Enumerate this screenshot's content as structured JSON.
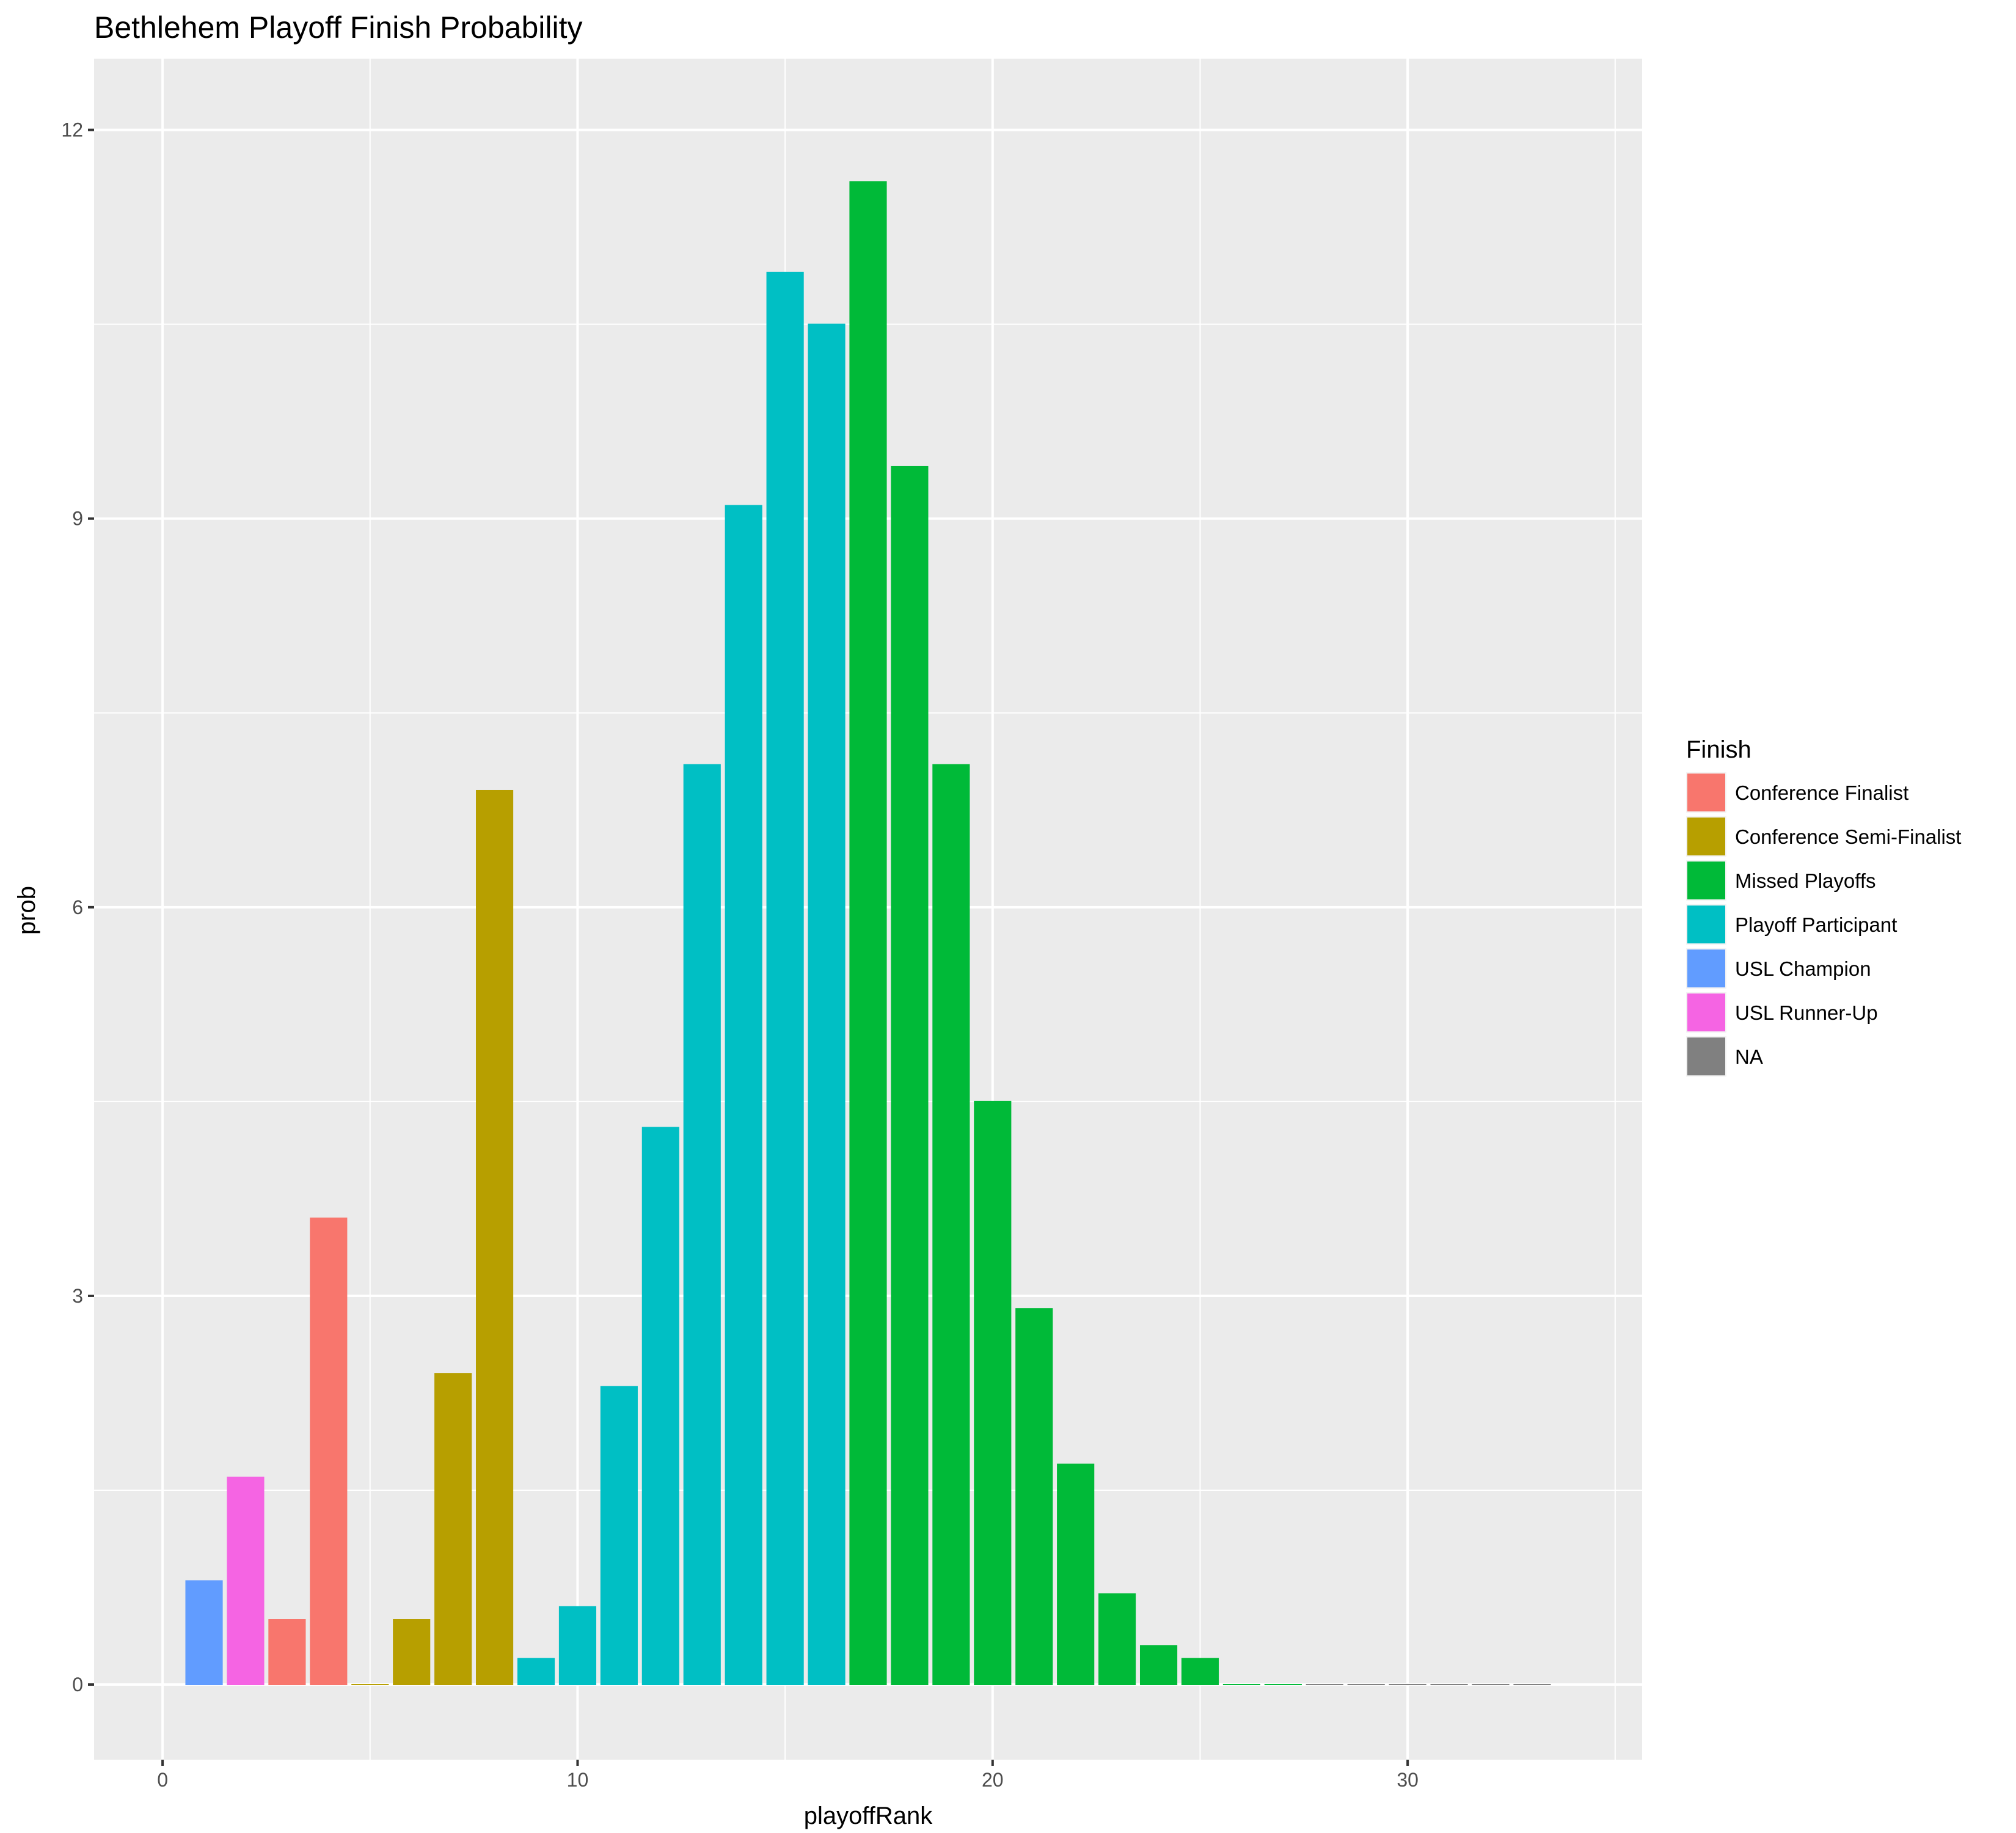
{
  "chart_data": {
    "type": "bar",
    "title": "Bethlehem Playoff Finish Probability",
    "xlabel": "playoffRank",
    "ylabel": "prob",
    "xlim": [
      -1.65,
      35.65
    ],
    "ylim": [
      -0.58,
      12.55
    ],
    "xticks": [
      0,
      10,
      20,
      30
    ],
    "yticks": [
      0,
      3,
      6,
      9,
      12
    ],
    "grid": true,
    "legend": {
      "title": "Finish",
      "position": "right",
      "entries": [
        {
          "name": "Conference Finalist",
          "color": "#F8766D"
        },
        {
          "name": "Conference Semi-Finalist",
          "color": "#B79F00"
        },
        {
          "name": "Missed Playoffs",
          "color": "#00BA38"
        },
        {
          "name": "Playoff Participant",
          "color": "#00BFC4"
        },
        {
          "name": "USL Champion",
          "color": "#619CFF"
        },
        {
          "name": "USL Runner-Up",
          "color": "#F564E3"
        },
        {
          "name": "NA",
          "color": "#808080"
        }
      ]
    },
    "bars": [
      {
        "x": 1,
        "y": 0.8,
        "finish": "USL Champion"
      },
      {
        "x": 2,
        "y": 1.6,
        "finish": "USL Runner-Up"
      },
      {
        "x": 3,
        "y": 0.5,
        "finish": "Conference Finalist"
      },
      {
        "x": 4,
        "y": 3.6,
        "finish": "Conference Finalist"
      },
      {
        "x": 5,
        "y": 0.0,
        "finish": "Conference Semi-Finalist"
      },
      {
        "x": 6,
        "y": 0.5,
        "finish": "Conference Semi-Finalist"
      },
      {
        "x": 7,
        "y": 2.4,
        "finish": "Conference Semi-Finalist"
      },
      {
        "x": 8,
        "y": 6.9,
        "finish": "Conference Semi-Finalist"
      },
      {
        "x": 9,
        "y": 0.2,
        "finish": "Playoff Participant"
      },
      {
        "x": 10,
        "y": 0.6,
        "finish": "Playoff Participant"
      },
      {
        "x": 11,
        "y": 2.3,
        "finish": "Playoff Participant"
      },
      {
        "x": 12,
        "y": 4.3,
        "finish": "Playoff Participant"
      },
      {
        "x": 13,
        "y": 7.1,
        "finish": "Playoff Participant"
      },
      {
        "x": 14,
        "y": 9.1,
        "finish": "Playoff Participant"
      },
      {
        "x": 15,
        "y": 10.9,
        "finish": "Playoff Participant"
      },
      {
        "x": 16,
        "y": 10.5,
        "finish": "Playoff Participant"
      },
      {
        "x": 17,
        "y": 11.6,
        "finish": "Missed Playoffs"
      },
      {
        "x": 18,
        "y": 9.4,
        "finish": "Missed Playoffs"
      },
      {
        "x": 19,
        "y": 7.1,
        "finish": "Missed Playoffs"
      },
      {
        "x": 20,
        "y": 4.5,
        "finish": "Missed Playoffs"
      },
      {
        "x": 21,
        "y": 2.9,
        "finish": "Missed Playoffs"
      },
      {
        "x": 22,
        "y": 1.7,
        "finish": "Missed Playoffs"
      },
      {
        "x": 23,
        "y": 0.7,
        "finish": "Missed Playoffs"
      },
      {
        "x": 24,
        "y": 0.3,
        "finish": "Missed Playoffs"
      },
      {
        "x": 25,
        "y": 0.2,
        "finish": "Missed Playoffs"
      },
      {
        "x": 26,
        "y": 0.0,
        "finish": "Missed Playoffs"
      },
      {
        "x": 27,
        "y": 0.0,
        "finish": "Missed Playoffs"
      },
      {
        "x": 28,
        "y": 0.0,
        "finish": "NA"
      },
      {
        "x": 29,
        "y": 0.0,
        "finish": "NA"
      },
      {
        "x": 30,
        "y": 0.0,
        "finish": "NA"
      },
      {
        "x": 31,
        "y": 0.0,
        "finish": "NA"
      },
      {
        "x": 32,
        "y": 0.0,
        "finish": "NA"
      },
      {
        "x": 33,
        "y": 0.0,
        "finish": "NA"
      }
    ]
  }
}
